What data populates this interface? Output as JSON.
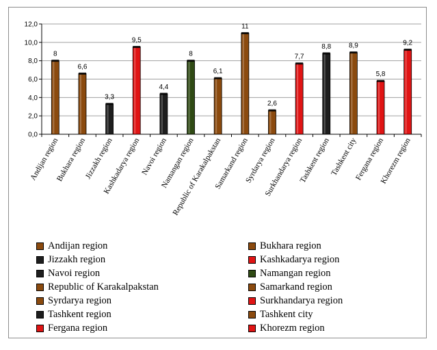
{
  "chart_data": {
    "type": "bar",
    "title": "",
    "xlabel": "",
    "ylabel": "",
    "ylim": [
      0,
      12
    ],
    "yticks": [
      "0,0",
      "2,0",
      "4,0",
      "6,0",
      "8,0",
      "10,0",
      "12,0"
    ],
    "grid": true,
    "legend_position": "bottom",
    "categories": [
      "Andijan region",
      "Bukhara region",
      "Jizzakh region",
      "Kashkadarya region",
      "Navoi region",
      "Namangan region",
      "Republic of Karakalpakstan",
      "Samarkand region",
      "Syrdarya region",
      "Surkhandarya region",
      "Tashkent region",
      "Tashkent city",
      "Fergana region",
      "Khorezm region"
    ],
    "values": [
      8,
      6.6,
      3.3,
      9.5,
      4.4,
      8,
      6.1,
      11,
      2.6,
      7.7,
      8.8,
      8.9,
      5.8,
      9.2
    ],
    "value_labels": [
      "8",
      "6,6",
      "3,3",
      "9,5",
      "4,4",
      "8",
      "6,1",
      "11",
      "2,6",
      "7,7",
      "8,8",
      "8,9",
      "5,8",
      "9,2"
    ],
    "colors": [
      "#8B4A0E",
      "#8B4A0E",
      "#1E1E1E",
      "#E01414",
      "#1E1E1E",
      "#2F4A14",
      "#8B4A0E",
      "#8B4A0E",
      "#8B4A0E",
      "#E01414",
      "#1E1E1E",
      "#8B4A0E",
      "#E01414",
      "#E01414"
    ],
    "legend": [
      "Andijan region",
      "Bukhara region",
      "Jizzakh region",
      "Kashkadarya region",
      "Navoi region",
      "Namangan region",
      "Republic of Karakalpakstan",
      "Samarkand region",
      "Syrdarya region",
      "Surkhandarya region",
      "Tashkent region",
      "Tashkent city",
      "Fergana region",
      "Khorezm region"
    ],
    "legend_colors": [
      "#8B4A0E",
      "#8B4A0E",
      "#1E1E1E",
      "#E01414",
      "#1E1E1E",
      "#2F4A14",
      "#8B4A0E",
      "#8B4A0E",
      "#8B4A0E",
      "#E01414",
      "#1E1E1E",
      "#8B4A0E",
      "#E01414",
      "#E01414"
    ]
  }
}
